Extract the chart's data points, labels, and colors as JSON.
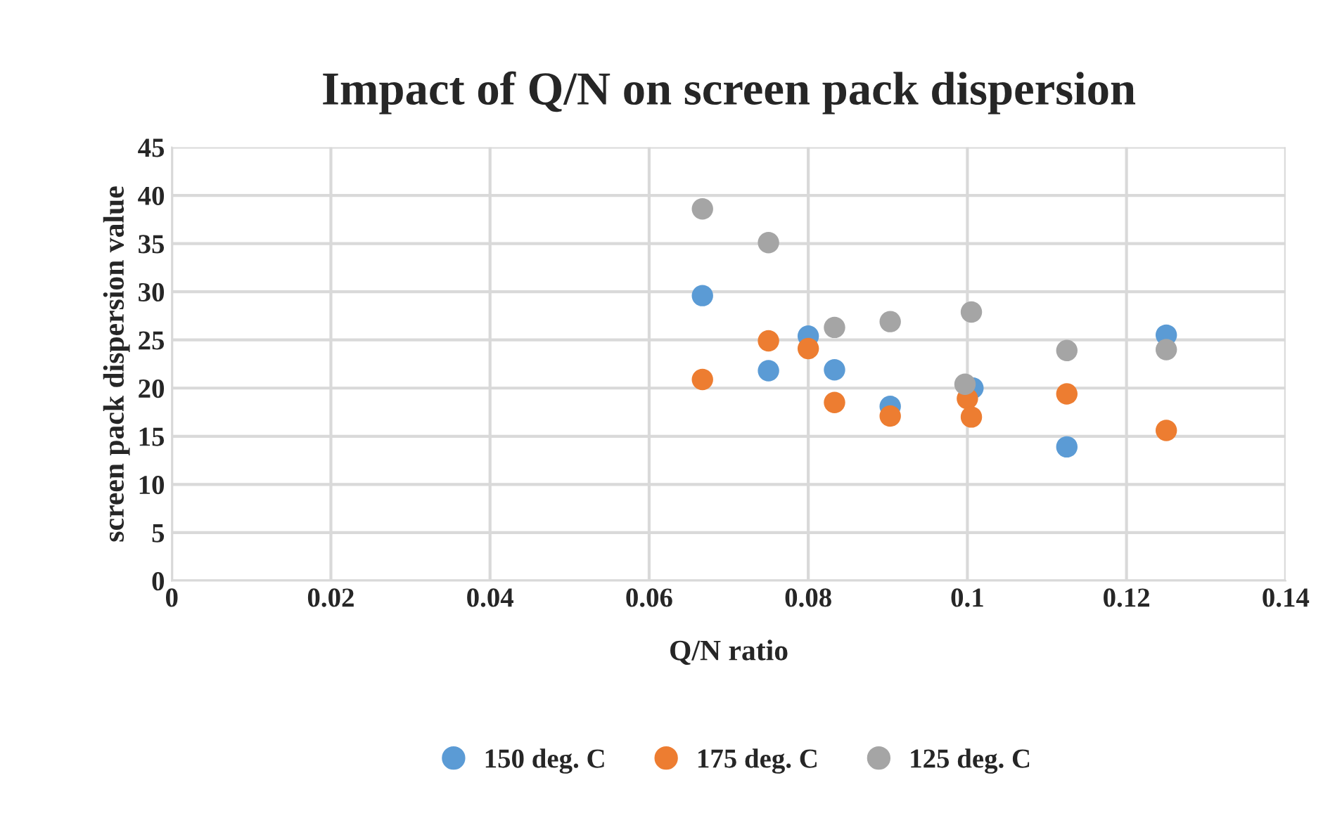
{
  "chart_data": {
    "type": "scatter",
    "title": "Impact of Q/N on screen pack dispersion",
    "xlabel": "Q/N ratio",
    "ylabel": "screen pack dispersion value",
    "xlim": [
      0,
      0.14
    ],
    "xticks": [
      0,
      0.02,
      0.04,
      0.06,
      0.08,
      0.1,
      0.12,
      0.14
    ],
    "ylim": [
      0,
      45
    ],
    "yticks": [
      0,
      5,
      10,
      15,
      20,
      25,
      30,
      35,
      40,
      45
    ],
    "grid": true,
    "legend": "bottom",
    "marker": "circle",
    "series": [
      {
        "name": "150 deg. C",
        "color": "#5b9bd5",
        "x": [
          0.0667,
          0.075,
          0.08,
          0.0833,
          0.0903,
          0.1007,
          0.1125,
          0.125
        ],
        "values": [
          29.6,
          21.8,
          25.4,
          21.9,
          18.1,
          20,
          13.9,
          25.5
        ]
      },
      {
        "name": "175 deg. C",
        "color": "#ed7d31",
        "x": [
          0.0667,
          0.075,
          0.08,
          0.0833,
          0.0903,
          0.1,
          0.1005,
          0.1125,
          0.125
        ],
        "values": [
          20.9,
          24.9,
          24.1,
          18.5,
          17.1,
          18.9,
          17,
          19.4,
          15.6
        ]
      },
      {
        "name": "125 deg. C",
        "color": "#a5a5a5",
        "x": [
          0.0667,
          0.075,
          0.0833,
          0.0903,
          0.1005,
          0.0997,
          0.1125,
          0.125
        ],
        "values": [
          38.6,
          35.1,
          26.3,
          26.9,
          27.9,
          20.4,
          23.9,
          24
        ]
      }
    ]
  }
}
